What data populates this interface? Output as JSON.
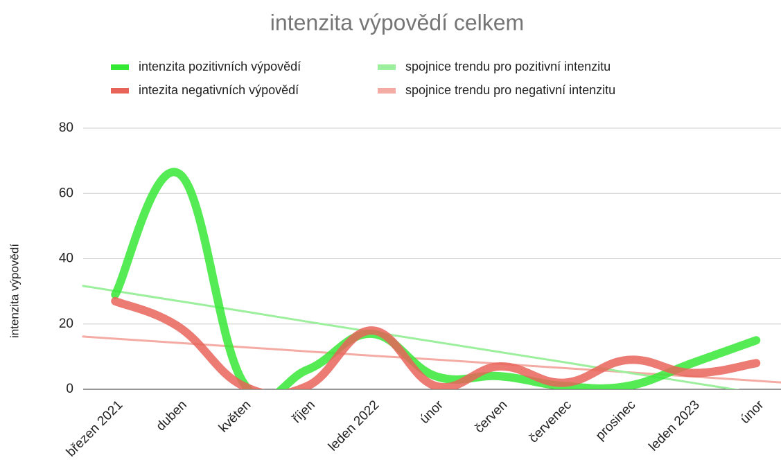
{
  "chart_data": {
    "type": "line",
    "title": "intenzita výpovědí celkem",
    "y_label": "intenzita výpovědí",
    "categories": [
      "březen 2021",
      "duben",
      "květen",
      "říjen",
      "leden 2022",
      "únor",
      "červen",
      "červenec",
      "prosinec",
      "leden 2023",
      "únor"
    ],
    "series": [
      {
        "name": "intenzita pozitivních výpovědí",
        "color": "#36e836",
        "width": 12,
        "smooth": true,
        "values": [
          29,
          66,
          2,
          6,
          17,
          4,
          4,
          1,
          1,
          8,
          15
        ]
      },
      {
        "name": "intezita negativních výpovědí",
        "color": "#e8645a",
        "width": 12,
        "smooth": true,
        "values": [
          27,
          19,
          1,
          1,
          18,
          1,
          7,
          2,
          9,
          5,
          8
        ]
      },
      {
        "name": "spojnice trendu pro pozitivní intenzitu",
        "color": "#9cef9c",
        "width": 3,
        "trend": true,
        "values": [
          30.1,
          27,
          23.9,
          20.7,
          17.6,
          14.5,
          11.4,
          8.3,
          5.1,
          2,
          -1.1
        ]
      },
      {
        "name": "spojnice trendu pro negativní intenzitu",
        "color": "#f3aba3",
        "width": 3,
        "trend": true,
        "values": [
          15.5,
          14.2,
          12.9,
          11.6,
          10.3,
          9.1,
          7.8,
          6.5,
          5.2,
          3.9,
          2.6
        ]
      }
    ],
    "ylim": [
      0,
      80
    ],
    "yticks": [
      0,
      20,
      40,
      60,
      80
    ],
    "grid": true
  }
}
